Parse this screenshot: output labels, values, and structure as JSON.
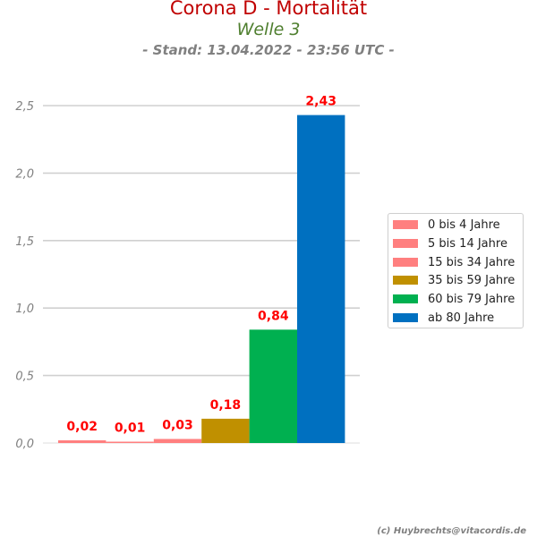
{
  "header": {
    "title": "Corona D - Mortalität",
    "subtitle": "Welle 3",
    "stand": "- Stand: 13.04.2022 - 23:56 UTC -"
  },
  "chart_data": {
    "type": "bar",
    "title": "Corona D - Mortalität",
    "subtitle": "Welle 3",
    "categories": [
      "0 bis 4 Jahre",
      "5 bis 14 Jahre",
      "15 bis 34 Jahre",
      "35 bis 59 Jahre",
      "60 bis 79 Jahre",
      "ab 80 Jahre"
    ],
    "values": [
      0.02,
      0.01,
      0.03,
      0.18,
      0.84,
      2.43
    ],
    "value_labels": [
      "0,02",
      "0,01",
      "0,03",
      "0,18",
      "0,84",
      "2,43"
    ],
    "colors": [
      "#ff7f7f",
      "#ff7f7f",
      "#ff7f7f",
      "#c09000",
      "#00b050",
      "#0070c0"
    ],
    "ylim": [
      0,
      2.5
    ],
    "yticks": [
      0,
      0.5,
      1.0,
      1.5,
      2.0,
      2.5
    ],
    "ytick_labels": [
      "0,0",
      "0,5",
      "1,0",
      "1,5",
      "2,0",
      "2,5"
    ],
    "xlabel": "",
    "ylabel": "",
    "grid": true,
    "legend_position": "right",
    "data_label_color": "#ff0000"
  },
  "legend": {
    "items": [
      {
        "label": "0 bis 4 Jahre",
        "color": "#ff7f7f"
      },
      {
        "label": "5 bis 14 Jahre",
        "color": "#ff7f7f"
      },
      {
        "label": "15 bis 34 Jahre",
        "color": "#ff7f7f"
      },
      {
        "label": "35 bis 59 Jahre",
        "color": "#c09000"
      },
      {
        "label": "60 bis 79 Jahre",
        "color": "#00b050"
      },
      {
        "label": "ab 80 Jahre",
        "color": "#0070c0"
      }
    ]
  },
  "footer": {
    "credit": "(c) Huybrechts@vitacordis.de"
  }
}
